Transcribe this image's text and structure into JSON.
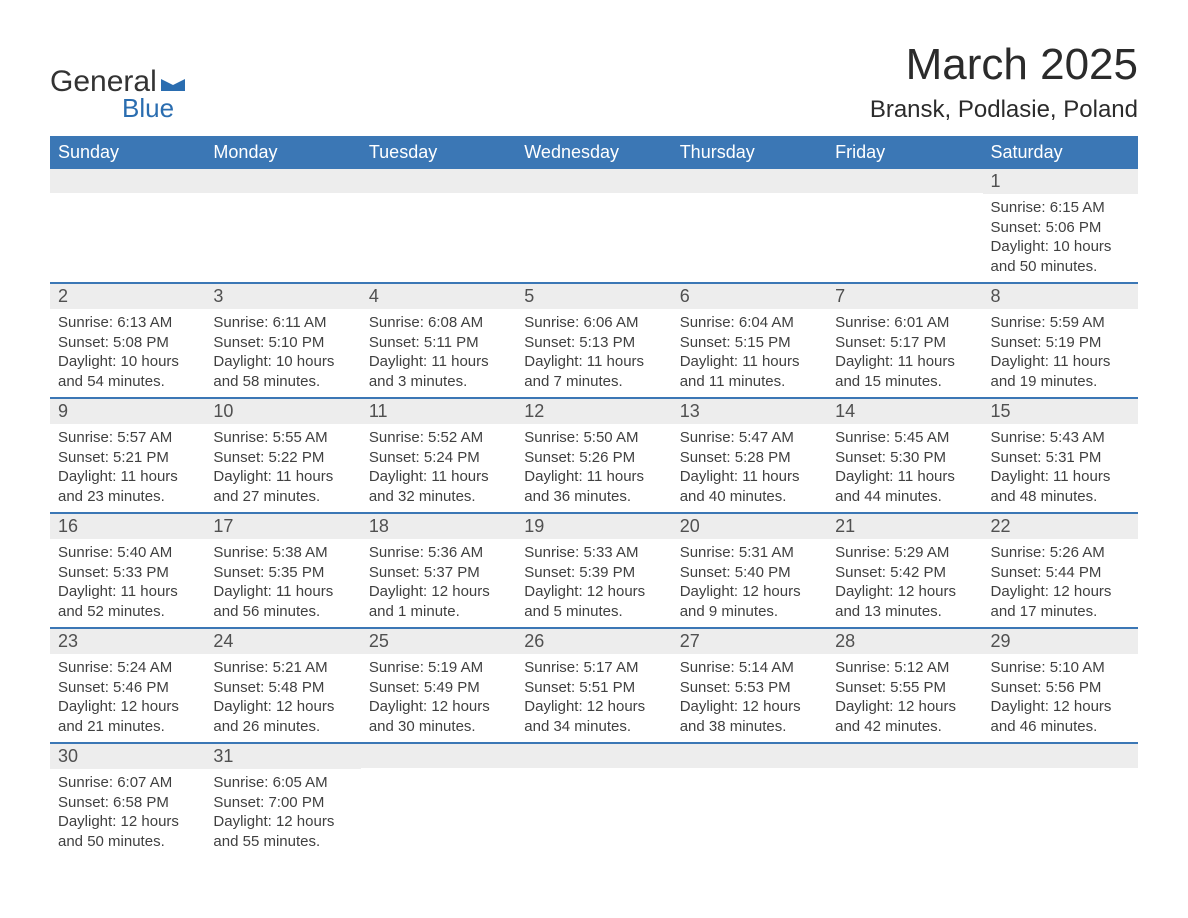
{
  "logo": {
    "text1": "General",
    "text2": "Blue"
  },
  "header": {
    "month": "March 2025",
    "location": "Bransk, Podlasie, Poland"
  },
  "colors": {
    "header_bg": "#3b77b5",
    "header_text": "#ffffff",
    "strip_bg": "#ededed",
    "border": "#3b77b5",
    "body_text": "#404040"
  },
  "days_of_week": [
    "Sunday",
    "Monday",
    "Tuesday",
    "Wednesday",
    "Thursday",
    "Friday",
    "Saturday"
  ],
  "weeks": [
    [
      null,
      null,
      null,
      null,
      null,
      null,
      {
        "n": "1",
        "sunrise": "Sunrise: 6:15 AM",
        "sunset": "Sunset: 5:06 PM",
        "day1": "Daylight: 10 hours",
        "day2": "and 50 minutes."
      }
    ],
    [
      {
        "n": "2",
        "sunrise": "Sunrise: 6:13 AM",
        "sunset": "Sunset: 5:08 PM",
        "day1": "Daylight: 10 hours",
        "day2": "and 54 minutes."
      },
      {
        "n": "3",
        "sunrise": "Sunrise: 6:11 AM",
        "sunset": "Sunset: 5:10 PM",
        "day1": "Daylight: 10 hours",
        "day2": "and 58 minutes."
      },
      {
        "n": "4",
        "sunrise": "Sunrise: 6:08 AM",
        "sunset": "Sunset: 5:11 PM",
        "day1": "Daylight: 11 hours",
        "day2": "and 3 minutes."
      },
      {
        "n": "5",
        "sunrise": "Sunrise: 6:06 AM",
        "sunset": "Sunset: 5:13 PM",
        "day1": "Daylight: 11 hours",
        "day2": "and 7 minutes."
      },
      {
        "n": "6",
        "sunrise": "Sunrise: 6:04 AM",
        "sunset": "Sunset: 5:15 PM",
        "day1": "Daylight: 11 hours",
        "day2": "and 11 minutes."
      },
      {
        "n": "7",
        "sunrise": "Sunrise: 6:01 AM",
        "sunset": "Sunset: 5:17 PM",
        "day1": "Daylight: 11 hours",
        "day2": "and 15 minutes."
      },
      {
        "n": "8",
        "sunrise": "Sunrise: 5:59 AM",
        "sunset": "Sunset: 5:19 PM",
        "day1": "Daylight: 11 hours",
        "day2": "and 19 minutes."
      }
    ],
    [
      {
        "n": "9",
        "sunrise": "Sunrise: 5:57 AM",
        "sunset": "Sunset: 5:21 PM",
        "day1": "Daylight: 11 hours",
        "day2": "and 23 minutes."
      },
      {
        "n": "10",
        "sunrise": "Sunrise: 5:55 AM",
        "sunset": "Sunset: 5:22 PM",
        "day1": "Daylight: 11 hours",
        "day2": "and 27 minutes."
      },
      {
        "n": "11",
        "sunrise": "Sunrise: 5:52 AM",
        "sunset": "Sunset: 5:24 PM",
        "day1": "Daylight: 11 hours",
        "day2": "and 32 minutes."
      },
      {
        "n": "12",
        "sunrise": "Sunrise: 5:50 AM",
        "sunset": "Sunset: 5:26 PM",
        "day1": "Daylight: 11 hours",
        "day2": "and 36 minutes."
      },
      {
        "n": "13",
        "sunrise": "Sunrise: 5:47 AM",
        "sunset": "Sunset: 5:28 PM",
        "day1": "Daylight: 11 hours",
        "day2": "and 40 minutes."
      },
      {
        "n": "14",
        "sunrise": "Sunrise: 5:45 AM",
        "sunset": "Sunset: 5:30 PM",
        "day1": "Daylight: 11 hours",
        "day2": "and 44 minutes."
      },
      {
        "n": "15",
        "sunrise": "Sunrise: 5:43 AM",
        "sunset": "Sunset: 5:31 PM",
        "day1": "Daylight: 11 hours",
        "day2": "and 48 minutes."
      }
    ],
    [
      {
        "n": "16",
        "sunrise": "Sunrise: 5:40 AM",
        "sunset": "Sunset: 5:33 PM",
        "day1": "Daylight: 11 hours",
        "day2": "and 52 minutes."
      },
      {
        "n": "17",
        "sunrise": "Sunrise: 5:38 AM",
        "sunset": "Sunset: 5:35 PM",
        "day1": "Daylight: 11 hours",
        "day2": "and 56 minutes."
      },
      {
        "n": "18",
        "sunrise": "Sunrise: 5:36 AM",
        "sunset": "Sunset: 5:37 PM",
        "day1": "Daylight: 12 hours",
        "day2": "and 1 minute."
      },
      {
        "n": "19",
        "sunrise": "Sunrise: 5:33 AM",
        "sunset": "Sunset: 5:39 PM",
        "day1": "Daylight: 12 hours",
        "day2": "and 5 minutes."
      },
      {
        "n": "20",
        "sunrise": "Sunrise: 5:31 AM",
        "sunset": "Sunset: 5:40 PM",
        "day1": "Daylight: 12 hours",
        "day2": "and 9 minutes."
      },
      {
        "n": "21",
        "sunrise": "Sunrise: 5:29 AM",
        "sunset": "Sunset: 5:42 PM",
        "day1": "Daylight: 12 hours",
        "day2": "and 13 minutes."
      },
      {
        "n": "22",
        "sunrise": "Sunrise: 5:26 AM",
        "sunset": "Sunset: 5:44 PM",
        "day1": "Daylight: 12 hours",
        "day2": "and 17 minutes."
      }
    ],
    [
      {
        "n": "23",
        "sunrise": "Sunrise: 5:24 AM",
        "sunset": "Sunset: 5:46 PM",
        "day1": "Daylight: 12 hours",
        "day2": "and 21 minutes."
      },
      {
        "n": "24",
        "sunrise": "Sunrise: 5:21 AM",
        "sunset": "Sunset: 5:48 PM",
        "day1": "Daylight: 12 hours",
        "day2": "and 26 minutes."
      },
      {
        "n": "25",
        "sunrise": "Sunrise: 5:19 AM",
        "sunset": "Sunset: 5:49 PM",
        "day1": "Daylight: 12 hours",
        "day2": "and 30 minutes."
      },
      {
        "n": "26",
        "sunrise": "Sunrise: 5:17 AM",
        "sunset": "Sunset: 5:51 PM",
        "day1": "Daylight: 12 hours",
        "day2": "and 34 minutes."
      },
      {
        "n": "27",
        "sunrise": "Sunrise: 5:14 AM",
        "sunset": "Sunset: 5:53 PM",
        "day1": "Daylight: 12 hours",
        "day2": "and 38 minutes."
      },
      {
        "n": "28",
        "sunrise": "Sunrise: 5:12 AM",
        "sunset": "Sunset: 5:55 PM",
        "day1": "Daylight: 12 hours",
        "day2": "and 42 minutes."
      },
      {
        "n": "29",
        "sunrise": "Sunrise: 5:10 AM",
        "sunset": "Sunset: 5:56 PM",
        "day1": "Daylight: 12 hours",
        "day2": "and 46 minutes."
      }
    ],
    [
      {
        "n": "30",
        "sunrise": "Sunrise: 6:07 AM",
        "sunset": "Sunset: 6:58 PM",
        "day1": "Daylight: 12 hours",
        "day2": "and 50 minutes."
      },
      {
        "n": "31",
        "sunrise": "Sunrise: 6:05 AM",
        "sunset": "Sunset: 7:00 PM",
        "day1": "Daylight: 12 hours",
        "day2": "and 55 minutes."
      },
      null,
      null,
      null,
      null,
      null
    ]
  ]
}
